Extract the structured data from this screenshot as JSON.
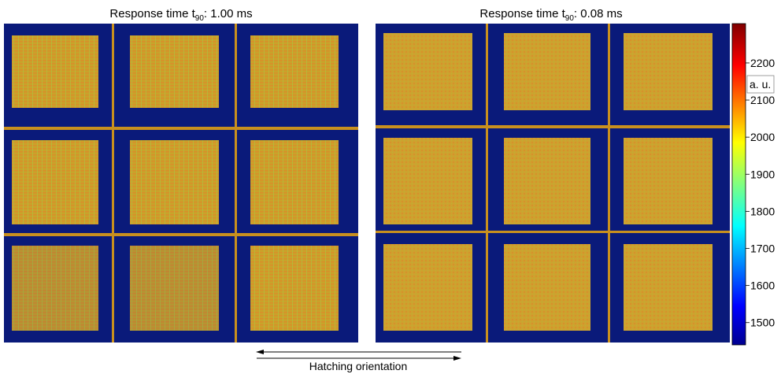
{
  "panels": [
    {
      "title": {
        "prefix": "Response time t",
        "subscript": "90",
        "suffix": ": 1.00 ms"
      }
    },
    {
      "title": {
        "prefix": "Response time t",
        "subscript": "90",
        "suffix": ": 0.08 ms"
      }
    }
  ],
  "colorbar": {
    "label": "a. u.",
    "lim": [
      1440,
      2306
    ],
    "ticks": [
      1500,
      1600,
      1700,
      1800,
      1900,
      2000,
      2100,
      2200
    ]
  },
  "annotation": "Hatching orientation"
}
